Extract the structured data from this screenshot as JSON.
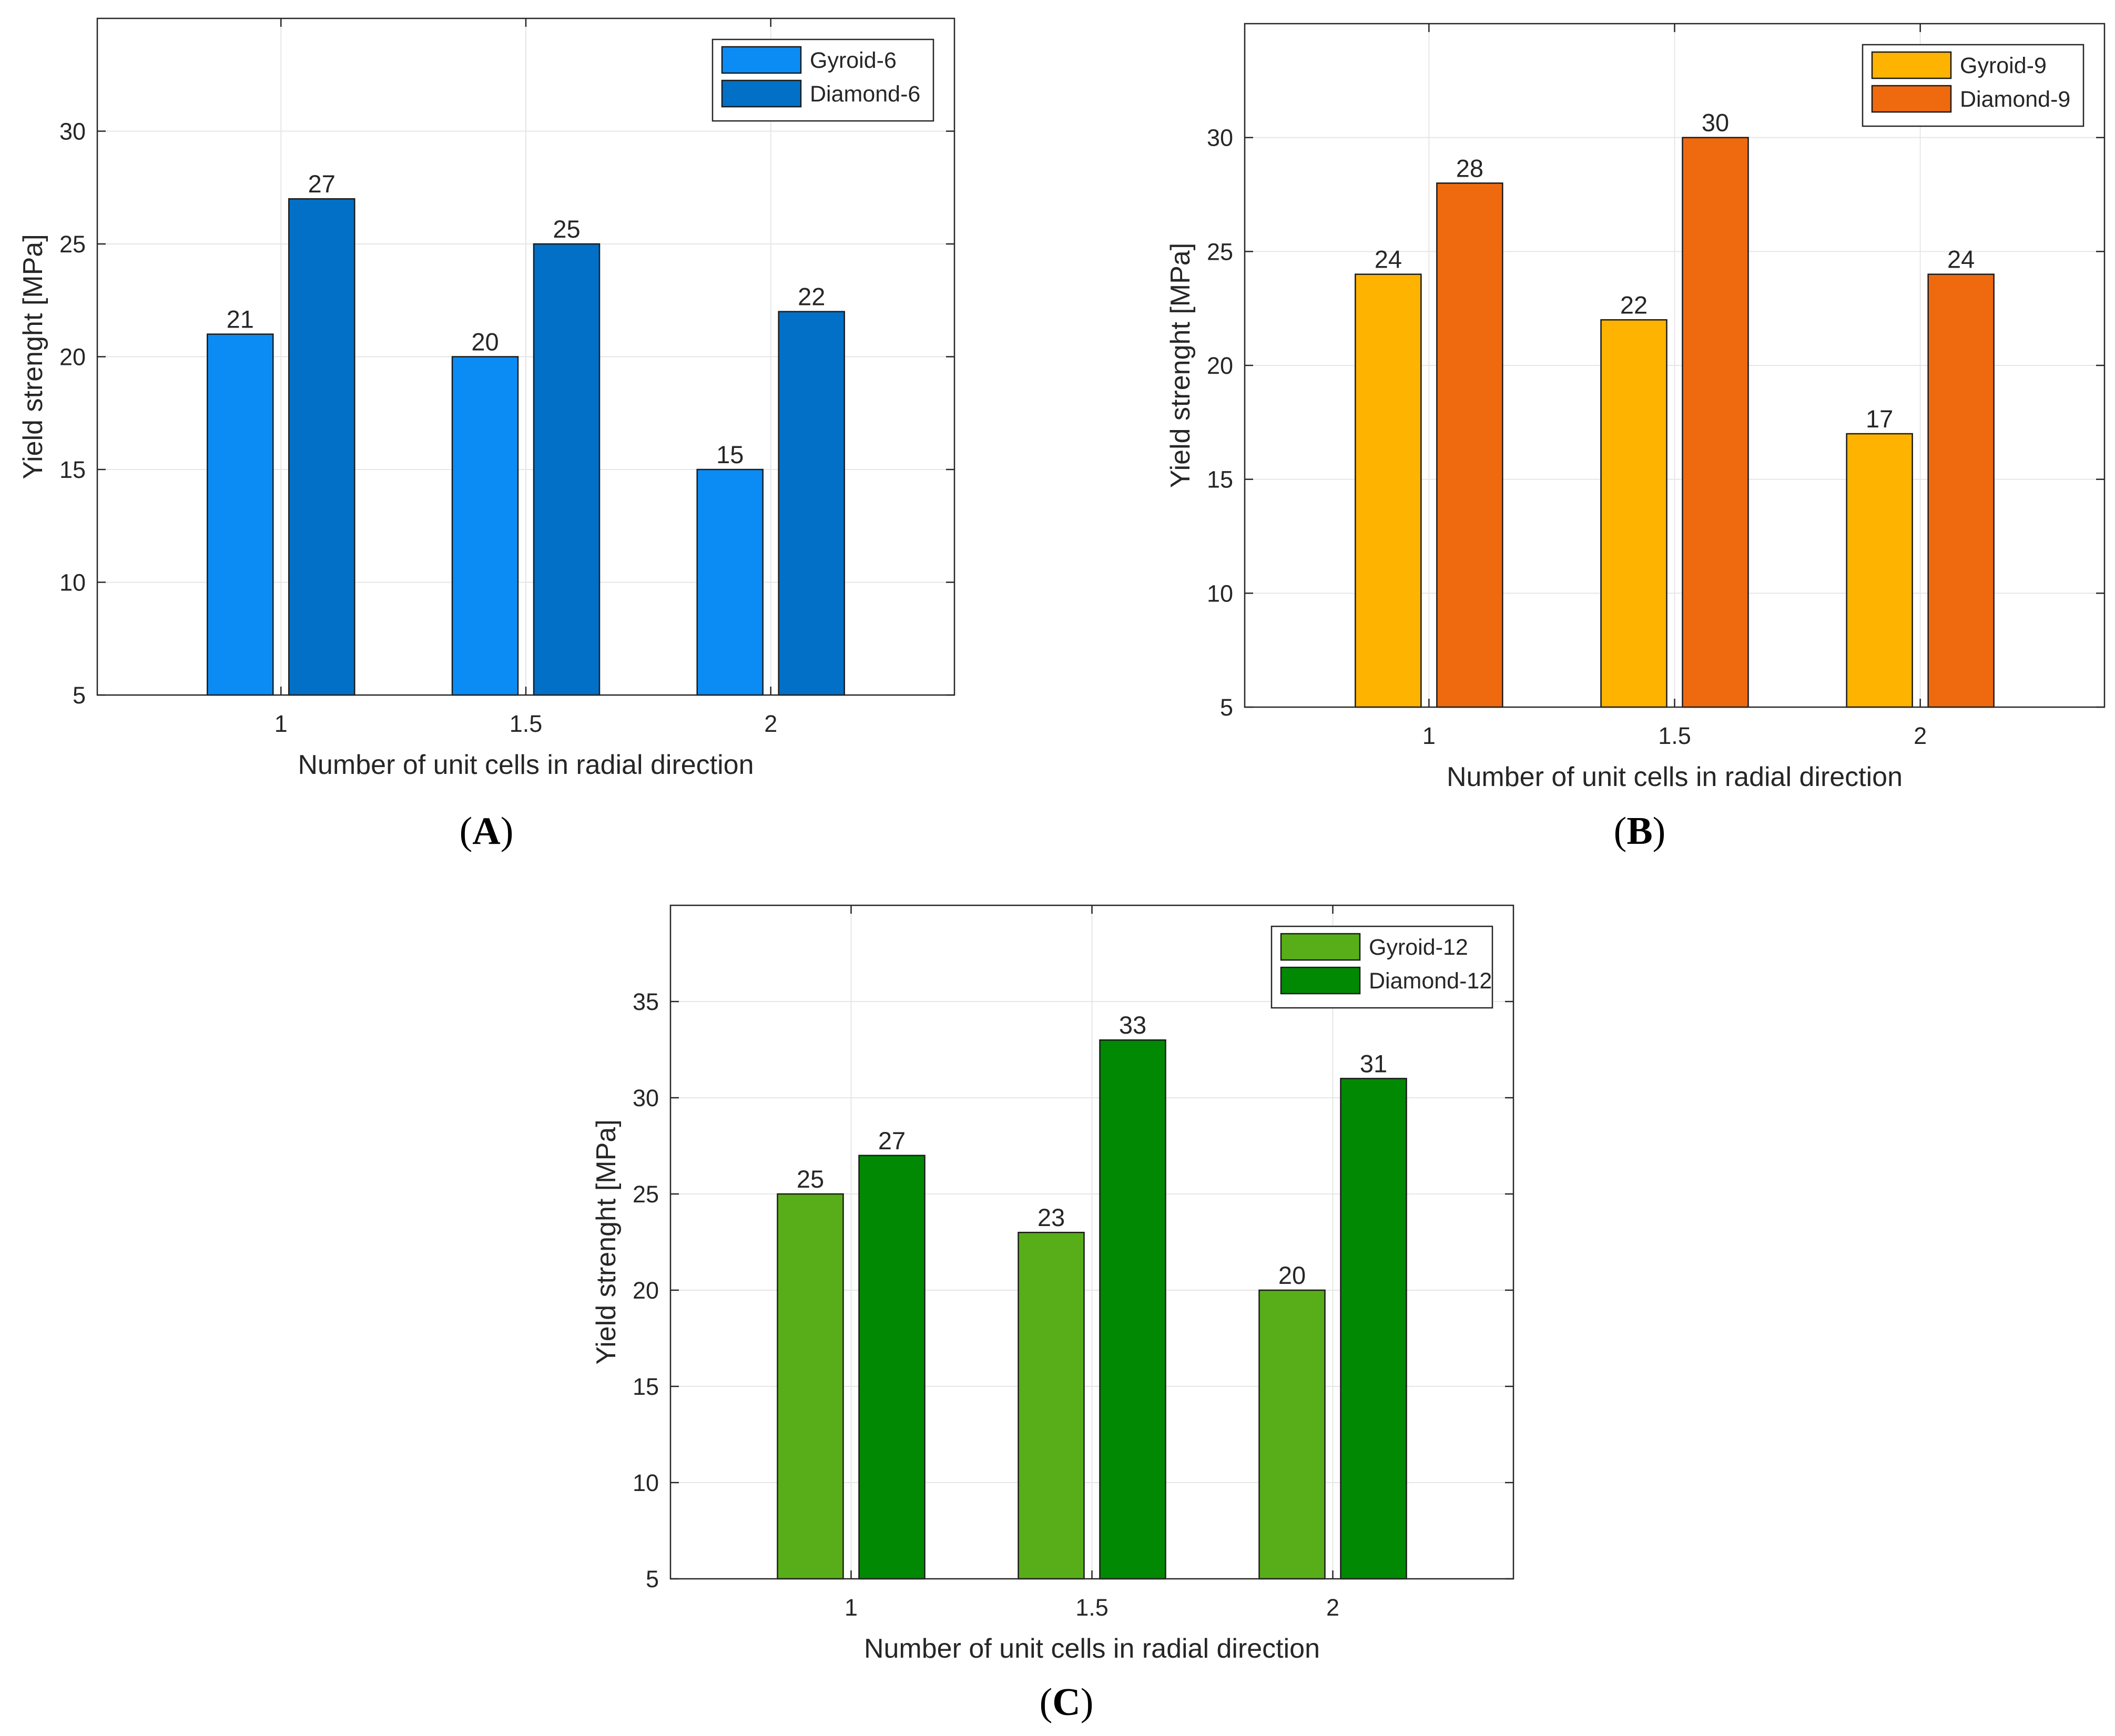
{
  "chart_data": [
    {
      "type": "bar",
      "panel_label": "A",
      "categories": [
        "1",
        "1.5",
        "2"
      ],
      "xlabel": "Number of unit cells in radial direction",
      "ylabel": "Yield strenght [MPa]",
      "ylim": [
        5,
        35
      ],
      "yticks": [
        5,
        10,
        15,
        20,
        25,
        30
      ],
      "grid": true,
      "legend_position": "top-right",
      "series": [
        {
          "name": "Gyroid-6",
          "values": [
            21,
            20,
            15
          ],
          "color": "#0b8cf5"
        },
        {
          "name": "Diamond-6",
          "values": [
            27,
            25,
            22
          ],
          "color": "#0270c6"
        }
      ]
    },
    {
      "type": "bar",
      "panel_label": "B",
      "categories": [
        "1",
        "1.5",
        "2"
      ],
      "xlabel": "Number of unit cells in radial direction",
      "ylabel": "Yield strenght [MPa]",
      "ylim": [
        5,
        35
      ],
      "yticks": [
        5,
        10,
        15,
        20,
        25,
        30
      ],
      "grid": true,
      "legend_position": "top-right",
      "series": [
        {
          "name": "Gyroid-9",
          "values": [
            24,
            22,
            17
          ],
          "color": "#fdb300"
        },
        {
          "name": "Diamond-9",
          "values": [
            28,
            30,
            24
          ],
          "color": "#ef6a0f"
        }
      ]
    },
    {
      "type": "bar",
      "panel_label": "C",
      "categories": [
        "1",
        "1.5",
        "2"
      ],
      "xlabel": "Number of unit cells in radial direction",
      "ylabel": "Yield strenght [MPa]",
      "ylim": [
        5,
        40
      ],
      "yticks": [
        5,
        10,
        15,
        20,
        25,
        30,
        35
      ],
      "grid": true,
      "legend_position": "top-right",
      "series": [
        {
          "name": "Gyroid-12",
          "values": [
            25,
            23,
            20
          ],
          "color": "#58ae18"
        },
        {
          "name": "Diamond-12",
          "values": [
            27,
            33,
            31
          ],
          "color": "#028904"
        }
      ]
    }
  ]
}
